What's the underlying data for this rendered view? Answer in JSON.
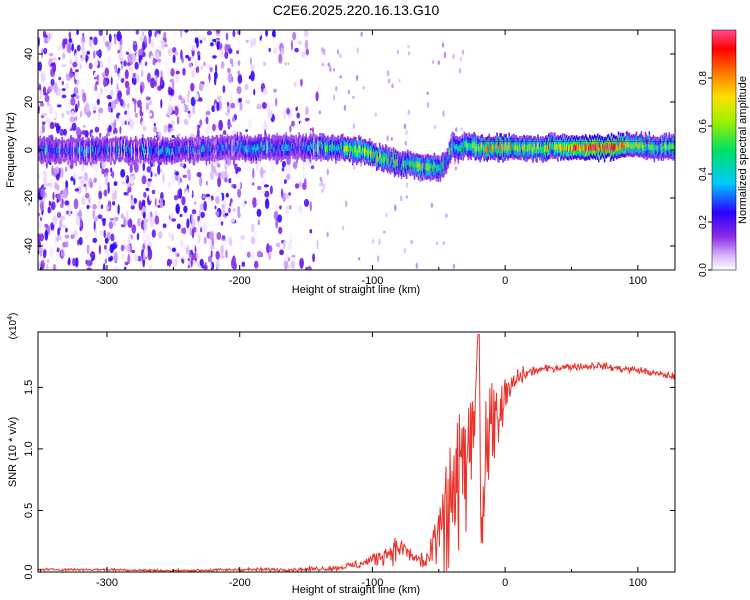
{
  "title": "C2E6.2025.220.16.13.G10",
  "chart_data": [
    {
      "type": "heatmap",
      "xlabel": "Height of straight line (km)",
      "ylabel": "Frequency (Hz)",
      "xlim": [
        -352,
        128
      ],
      "ylim": [
        -50,
        50
      ],
      "xticks": [
        -300,
        -200,
        -100,
        0,
        100
      ],
      "yticks": [
        -40,
        -20,
        0,
        20,
        40
      ],
      "xtick_labels": [
        "-300",
        "-200",
        "-100",
        "0",
        "100"
      ],
      "ytick_labels": [
        "-40",
        "-20",
        "0",
        "20",
        "40"
      ],
      "colorbar": {
        "label": "Normalized spectral amplitude",
        "range": [
          0,
          1
        ],
        "ticks": [
          0.0,
          0.2,
          0.4,
          0.6,
          0.8
        ],
        "tick_labels": [
          "0.0",
          "0.2",
          "0.4",
          "0.6",
          "0.8"
        ],
        "colormap": "rainbow (white-violet-blue-cyan-green-yellow-orange-red-pink)"
      },
      "ridge": {
        "x": [
          -352,
          -300,
          -250,
          -200,
          -150,
          -130,
          -110,
          -100,
          -90,
          -80,
          -70,
          -60,
          -50,
          -45,
          -40,
          -35,
          -30,
          -20,
          0,
          30,
          60,
          80,
          95,
          110,
          128
        ],
        "y": [
          0,
          0,
          0,
          1,
          1,
          1,
          0,
          -2,
          -4,
          -6,
          -6,
          -7,
          -8,
          -6,
          2,
          0,
          2,
          1,
          1,
          1,
          1,
          1,
          2,
          1,
          1
        ],
        "amplitude": [
          0.25,
          0.25,
          0.28,
          0.3,
          0.32,
          0.45,
          0.55,
          0.6,
          0.5,
          0.45,
          0.5,
          0.55,
          0.55,
          0.4,
          0.35,
          0.45,
          0.55,
          0.65,
          0.6,
          0.6,
          0.85,
          0.9,
          0.7,
          0.5,
          0.5
        ]
      },
      "background_noise": {
        "region_x": [
          -352,
          -140
        ],
        "amplitude": [
          0.0,
          0.25
        ]
      }
    },
    {
      "type": "line",
      "xlabel": "Height of straight line (km)",
      "ylabel": "SNR (10 * v/v)",
      "y_multiplier": "(x10",
      "y_multiplier_exponent": "4",
      "y_multiplier_close": ")",
      "xlim": [
        -352,
        128
      ],
      "ylim": [
        0,
        1.95
      ],
      "xticks": [
        -300,
        -200,
        -100,
        0,
        100
      ],
      "yticks": [
        0.0,
        0.5,
        1.0,
        1.5
      ],
      "xtick_labels": [
        "-300",
        "-200",
        "-100",
        "0",
        "100"
      ],
      "ytick_labels": [
        "0.0",
        "0.5",
        "1.0",
        "1.5"
      ],
      "color": "#e8332c",
      "series": [
        {
          "x": [
            -352,
            -300,
            -250,
            -200,
            -160,
            -130,
            -110,
            -100,
            -90,
            -80,
            -75,
            -70,
            -60,
            -50,
            -45,
            -40,
            -35,
            -30,
            -25,
            -20,
            -18,
            -15,
            -10,
            -5,
            0,
            5,
            10,
            20,
            30,
            40,
            50,
            60,
            70,
            80,
            90,
            100,
            110,
            120,
            128
          ],
          "y": [
            0.02,
            0.02,
            0.01,
            0.02,
            0.02,
            0.03,
            0.06,
            0.1,
            0.15,
            0.2,
            0.18,
            0.12,
            0.08,
            0.22,
            0.4,
            0.6,
            0.7,
            0.85,
            1.1,
            1.9,
            0.55,
            1.0,
            1.2,
            1.3,
            1.42,
            1.5,
            1.58,
            1.63,
            1.65,
            1.66,
            1.67,
            1.67,
            1.68,
            1.66,
            1.65,
            1.64,
            1.62,
            1.6,
            1.59
          ],
          "noise": [
            0.005,
            0.005,
            0.005,
            0.006,
            0.008,
            0.01,
            0.02,
            0.03,
            0.04,
            0.05,
            0.04,
            0.03,
            0.05,
            0.15,
            0.25,
            0.3,
            0.35,
            0.35,
            0.3,
            0.1,
            0.3,
            0.25,
            0.2,
            0.15,
            0.1,
            0.06,
            0.04,
            0.02,
            0.015,
            0.015,
            0.015,
            0.015,
            0.015,
            0.015,
            0.015,
            0.015,
            0.015,
            0.015,
            0.015
          ]
        }
      ]
    }
  ]
}
